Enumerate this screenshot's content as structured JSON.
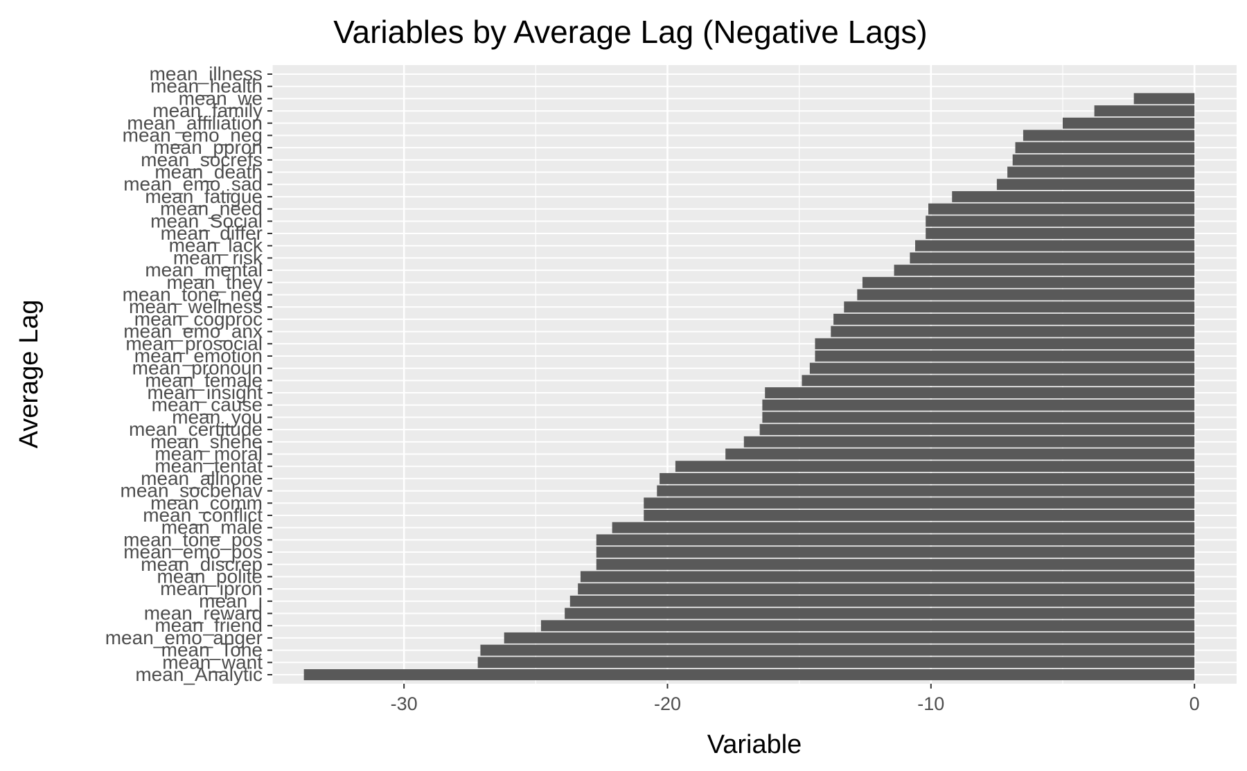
{
  "chart_data": {
    "type": "bar",
    "orientation": "horizontal",
    "title": "Variables by Average Lag (Negative Lags)",
    "xlabel": "Variable",
    "ylabel": "Average Lag",
    "xlim": [
      -35,
      1.6
    ],
    "xticks": [
      -30,
      -20,
      -10,
      0
    ],
    "xtick_labels": [
      "-30",
      "-20",
      "-10",
      "0"
    ],
    "grid": true,
    "legend": "none",
    "colors": {
      "bar": "#595959",
      "panel": "#ebebeb",
      "grid": "#ffffff"
    },
    "categories": [
      "mean_illness",
      "mean_health",
      "mean_we",
      "mean_family",
      "mean_affiliation",
      "mean_emo_neg",
      "mean_ppron",
      "mean_socrefs",
      "mean_death",
      "mean_emo_sad",
      "mean_fatigue",
      "mean_need",
      "mean_Social",
      "mean_differ",
      "mean_lack",
      "mean_risk",
      "mean_mental",
      "mean_they",
      "mean_tone_neg",
      "mean_wellness",
      "mean_cogproc",
      "mean_emo_anx",
      "mean_prosocial",
      "mean_emotion",
      "mean_pronoun",
      "mean_female",
      "mean_insight",
      "mean_cause",
      "mean_you",
      "mean_certitude",
      "mean_shehe",
      "mean_moral",
      "mean_tentat",
      "mean_allnone",
      "mean_socbehav",
      "mean_comm",
      "mean_conflict",
      "mean_male",
      "mean_tone_pos",
      "mean_emo_pos",
      "mean_discrep",
      "mean_polite",
      "mean_ipron",
      "mean_i",
      "mean_reward",
      "mean_friend",
      "mean_emo_anger",
      "mean_Tone",
      "mean_want",
      "mean_Analytic"
    ],
    "values": [
      0,
      0,
      -2.3,
      -3.8,
      -5.0,
      -6.5,
      -6.8,
      -6.9,
      -7.1,
      -7.5,
      -9.2,
      -10.1,
      -10.2,
      -10.2,
      -10.6,
      -10.8,
      -11.4,
      -12.6,
      -12.8,
      -13.3,
      -13.7,
      -13.8,
      -14.4,
      -14.4,
      -14.6,
      -14.9,
      -16.3,
      -16.4,
      -16.4,
      -16.5,
      -17.1,
      -17.8,
      -19.7,
      -20.3,
      -20.4,
      -20.9,
      -20.9,
      -22.1,
      -22.7,
      -22.7,
      -22.7,
      -23.3,
      -23.4,
      -23.7,
      -23.9,
      -24.8,
      -26.2,
      -27.1,
      -27.2,
      -33.8
    ]
  }
}
